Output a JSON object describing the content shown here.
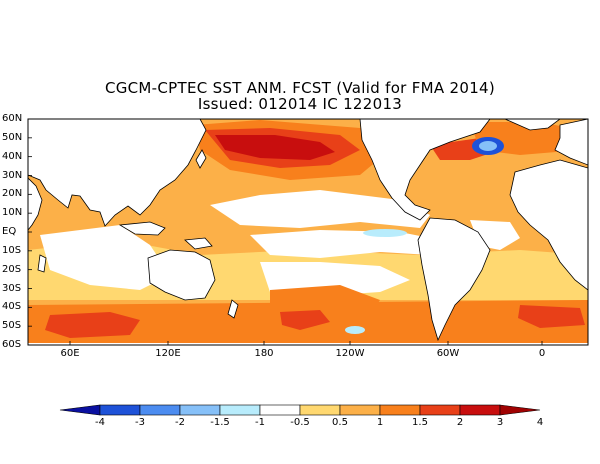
{
  "title_line1": "CGCM-CPTEC SST ANM. FCST  (Valid for FMA 2014)",
  "title_line2": "Issued:  012014 IC 122013",
  "lat_labels": [
    "60N",
    "50N",
    "40N",
    "30N",
    "20N",
    "10N",
    "EQ",
    "10S",
    "20S",
    "30S",
    "40S",
    "50S",
    "60S"
  ],
  "lon_labels": [
    "60E",
    "120E",
    "180",
    "120W",
    "60W",
    "0"
  ],
  "colorbar": {
    "labels": [
      "-4",
      "-3",
      "-2",
      "-1.5",
      "-1",
      "-0.5",
      "0.5",
      "1",
      "1.5",
      "2",
      "3",
      "4"
    ],
    "colors": [
      "#0a10a0",
      "#1e52d8",
      "#4c8cf0",
      "#86c0f8",
      "#b8ecfc",
      "#ffffff",
      "#ffd870",
      "#fcb048",
      "#f8801c",
      "#e84018",
      "#c80e0e",
      "#a00202"
    ]
  },
  "palette": {
    "land": "#ffffff",
    "neutral": "#ffffff",
    "warm_05": "#ffd870",
    "warm_1": "#fcb048",
    "warm_15": "#f8801c",
    "warm_2": "#e84018",
    "warm_3": "#c80e0e",
    "cool_05": "#b8ecfc",
    "cool_1": "#86c0f8",
    "cool_15": "#4c8cf0",
    "coast": "#000000"
  }
}
